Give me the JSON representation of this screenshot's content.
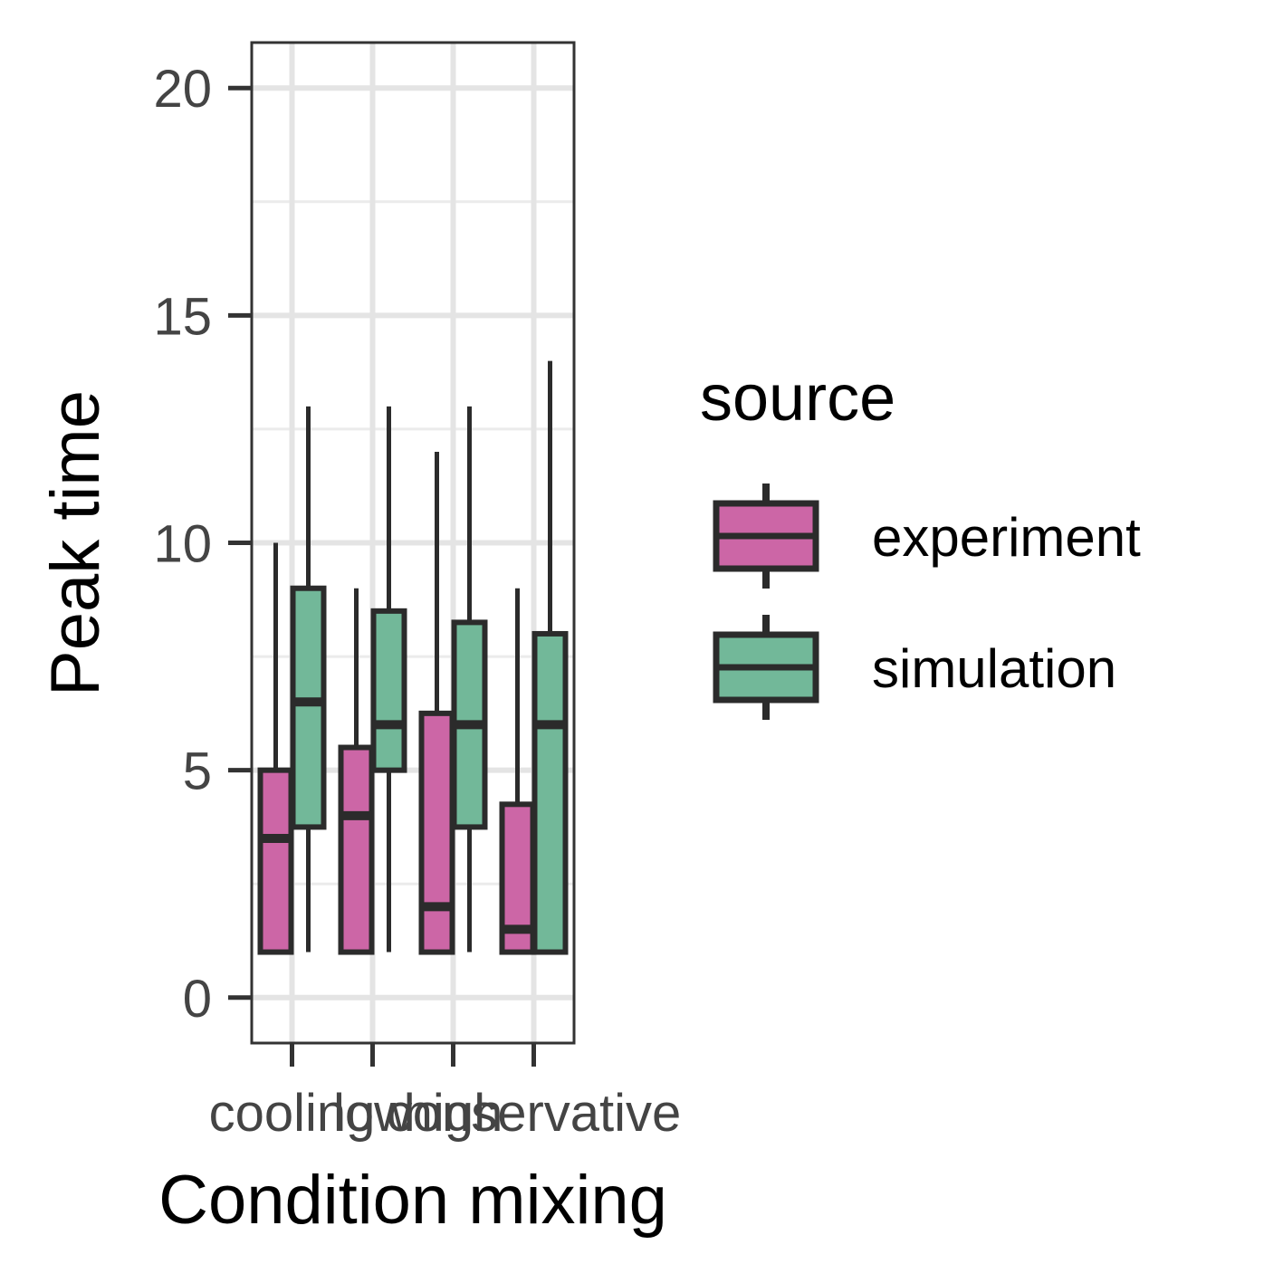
{
  "chart_data": {
    "type": "box",
    "xlabel": "Condition mixing",
    "ylabel": "Peak time",
    "categories": [
      "cooling",
      "low",
      "high",
      "conservative"
    ],
    "ylim": [
      -1,
      21
    ],
    "yticks": [
      0,
      5,
      10,
      15,
      20
    ],
    "grid": true,
    "legend": {
      "title": "source",
      "position": "right",
      "entries": [
        "experiment",
        "simulation"
      ]
    },
    "series": [
      {
        "name": "experiment",
        "color": "#CC66A6",
        "boxes": [
          {
            "category": "cooling",
            "min": 1,
            "q1": 1,
            "median": 3.5,
            "q3": 5,
            "max": 10
          },
          {
            "category": "low",
            "min": 1,
            "q1": 1,
            "median": 4,
            "q3": 5.5,
            "max": 9
          },
          {
            "category": "high",
            "min": 1,
            "q1": 1,
            "median": 2,
            "q3": 6.25,
            "max": 12
          },
          {
            "category": "conservative",
            "min": 1,
            "q1": 1,
            "median": 1.5,
            "q3": 4.25,
            "max": 9
          }
        ]
      },
      {
        "name": "simulation",
        "color": "#72B899",
        "boxes": [
          {
            "category": "cooling",
            "min": 1,
            "q1": 3.75,
            "median": 6.5,
            "q3": 9,
            "max": 13
          },
          {
            "category": "low",
            "min": 1,
            "q1": 5,
            "median": 6,
            "q3": 8.5,
            "max": 13
          },
          {
            "category": "high",
            "min": 1,
            "q1": 3.75,
            "median": 6,
            "q3": 8.25,
            "max": 13
          },
          {
            "category": "conservative",
            "min": 1,
            "q1": 1,
            "median": 6,
            "q3": 8,
            "max": 14
          }
        ]
      }
    ]
  }
}
